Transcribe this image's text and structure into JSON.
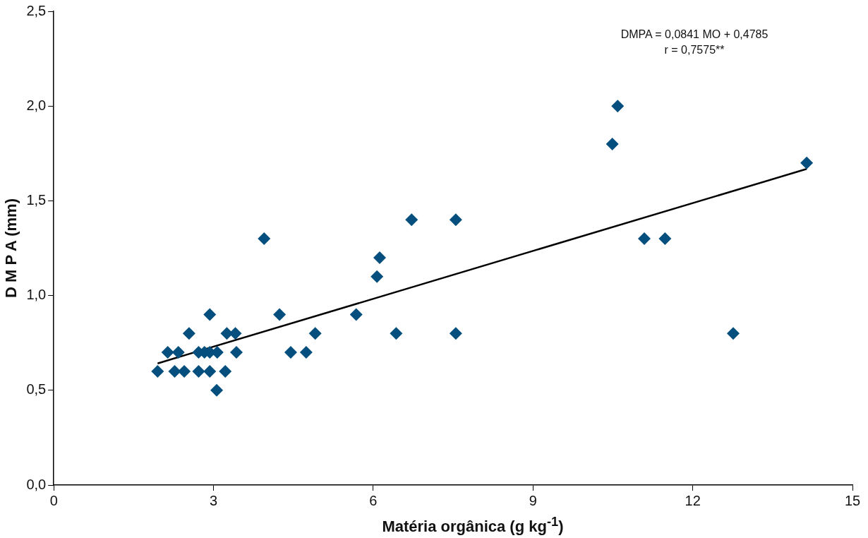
{
  "chart_data": {
    "type": "scatter",
    "xlabel": "Matéria orgânica (g kg$^{-1}$)",
    "ylabel": "D M P A (mm)",
    "annotations": [
      "DMPA = 0,0841 MO + 0,4785",
      "r = 0,7575**"
    ],
    "xlim": [
      0,
      15
    ],
    "xticks": [
      0,
      3,
      6,
      9,
      12,
      15
    ],
    "ylim": [
      0,
      2.5
    ],
    "yticks": [
      {
        "value": 0,
        "label": "0,0"
      },
      {
        "value": 0.5,
        "label": "0,5"
      },
      {
        "value": 1,
        "label": "1,0"
      },
      {
        "value": 1.5,
        "label": "1,5"
      },
      {
        "value": 2,
        "label": "2,0"
      },
      {
        "value": 2.5,
        "label": "2,5"
      }
    ],
    "grid": false,
    "legend": false,
    "marker": "diamond",
    "series": [
      {
        "color": "#044f7e",
        "x": [
          1.95,
          2.27,
          2.45,
          2.72,
          2.93,
          3.22,
          2.14,
          2.34,
          2.72,
          2.83,
          2.93,
          3.07,
          3.43,
          4.45,
          4.74,
          3.06,
          2.54,
          3.25,
          3.41,
          4.91,
          6.43,
          7.55,
          12.76,
          2.93,
          4.24,
          5.68,
          3.95,
          6.07,
          6.12,
          6.72,
          7.55,
          10.49,
          10.59,
          11.09,
          11.48,
          14.14
        ],
        "values": [
          0.6,
          0.6,
          0.6,
          0.6,
          0.6,
          0.6,
          0.7,
          0.7,
          0.7,
          0.7,
          0.7,
          0.7,
          0.7,
          0.7,
          0.7,
          0.5,
          0.8,
          0.8,
          0.8,
          0.8,
          0.8,
          0.8,
          0.8,
          0.9,
          0.9,
          0.9,
          1.3,
          1.1,
          1.2,
          1.4,
          1.4,
          1.8,
          2.0,
          1.3,
          1.3,
          1.7
        ]
      },
      {
        "type": "line",
        "color": "#000000",
        "marker": "none",
        "x": [
          1.95,
          14.14
        ],
        "values": [
          0.642,
          1.668
        ]
      }
    ]
  }
}
